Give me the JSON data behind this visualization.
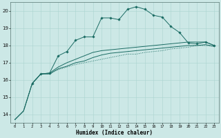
{
  "xlabel": "Humidex (Indice chaleur)",
  "xlim": [
    -0.5,
    23.5
  ],
  "ylim": [
    13.5,
    20.5
  ],
  "xticks": [
    0,
    1,
    2,
    3,
    4,
    5,
    6,
    7,
    8,
    9,
    10,
    11,
    12,
    13,
    14,
    15,
    16,
    17,
    18,
    19,
    20,
    21,
    22,
    23
  ],
  "yticks": [
    14,
    15,
    16,
    17,
    18,
    19,
    20
  ],
  "bg": "#cce8e6",
  "grid_color": "#aad4d0",
  "lc": "#1a6b63",
  "series": [
    {
      "x": [
        0,
        1,
        2,
        3,
        4,
        5,
        6,
        7,
        8,
        9,
        10,
        11,
        12,
        13,
        14,
        15,
        16,
        17,
        18,
        19,
        20,
        21,
        22,
        23
      ],
      "y": [
        13.7,
        14.2,
        15.8,
        16.35,
        16.35,
        16.6,
        16.75,
        16.9,
        17.0,
        17.1,
        17.2,
        17.3,
        17.4,
        17.5,
        17.5,
        17.6,
        17.65,
        17.7,
        17.8,
        17.85,
        17.9,
        18.0,
        18.0,
        17.95
      ],
      "marker": false,
      "lw": 0.7,
      "ls": ":"
    },
    {
      "x": [
        0,
        1,
        2,
        3,
        4,
        5,
        6,
        7,
        8,
        9,
        10,
        11,
        12,
        13,
        14,
        15,
        16,
        17,
        18,
        19,
        20,
        21,
        22,
        23
      ],
      "y": [
        13.7,
        14.2,
        15.8,
        16.35,
        16.35,
        16.65,
        16.8,
        17.0,
        17.1,
        17.3,
        17.45,
        17.55,
        17.6,
        17.65,
        17.7,
        17.75,
        17.8,
        17.85,
        17.9,
        17.95,
        18.0,
        18.0,
        18.05,
        17.95
      ],
      "marker": false,
      "lw": 0.7,
      "ls": "-"
    },
    {
      "x": [
        0,
        1,
        2,
        3,
        4,
        5,
        6,
        7,
        8,
        9,
        10,
        11,
        12,
        13,
        14,
        15,
        16,
        17,
        18,
        19,
        20,
        21,
        22,
        23
      ],
      "y": [
        13.7,
        14.2,
        15.8,
        16.35,
        16.4,
        16.75,
        17.0,
        17.2,
        17.4,
        17.6,
        17.7,
        17.75,
        17.8,
        17.85,
        17.9,
        17.95,
        18.0,
        18.05,
        18.1,
        18.15,
        18.2,
        18.2,
        18.2,
        18.0
      ],
      "marker": false,
      "lw": 0.7,
      "ls": "-"
    },
    {
      "x": [
        2,
        3,
        4,
        5,
        6,
        7,
        8,
        9,
        10,
        11,
        12,
        13,
        14,
        15,
        16,
        17,
        18,
        19,
        20,
        21,
        22,
        23
      ],
      "y": [
        15.8,
        16.35,
        16.4,
        17.4,
        17.65,
        18.3,
        18.5,
        18.5,
        19.6,
        19.6,
        19.5,
        20.1,
        20.25,
        20.1,
        19.75,
        19.65,
        19.1,
        18.75,
        18.15,
        18.1,
        18.2,
        18.0
      ],
      "marker": true,
      "lw": 0.7,
      "ls": "-"
    }
  ]
}
